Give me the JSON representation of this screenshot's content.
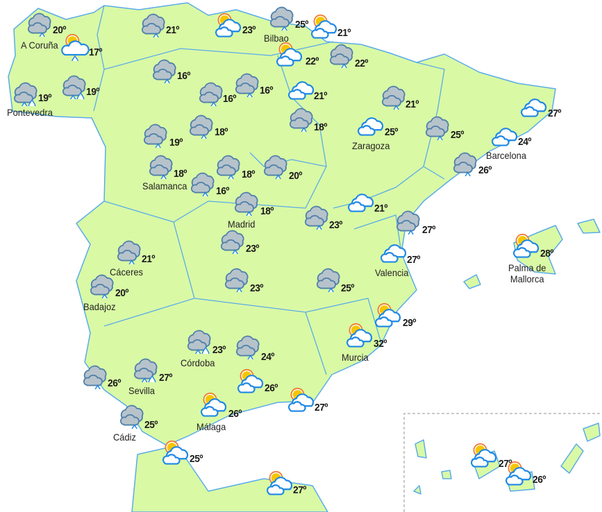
{
  "colors": {
    "land": "#d9f9a5",
    "border": "#5aabea",
    "rain_cloud": "#b7c3cb",
    "cloud_outline": "#1e88e5",
    "sun": "#f7c600",
    "sun_rays": "#f26b1d"
  },
  "stations": [
    {
      "icon": "rain",
      "temp": "20º",
      "city": "A Coruña"
    },
    {
      "icon": "sun-cloud-rain",
      "temp": "17º",
      "city": ""
    },
    {
      "icon": "showers",
      "temp": "19º",
      "city": "Pontevedra"
    },
    {
      "icon": "showers",
      "temp": "19º",
      "city": ""
    },
    {
      "icon": "rain",
      "temp": "21º",
      "city": ""
    },
    {
      "icon": "rain",
      "temp": "16º",
      "city": ""
    },
    {
      "icon": "partly-cloudy",
      "temp": "23º",
      "city": ""
    },
    {
      "icon": "rain",
      "temp": "25º",
      "city": "Bilbao"
    },
    {
      "icon": "partly-cloudy",
      "temp": "21º",
      "city": ""
    },
    {
      "icon": "partly-cloudy",
      "temp": "22º",
      "city": ""
    },
    {
      "icon": "rain",
      "temp": "22º",
      "city": ""
    },
    {
      "icon": "rain",
      "temp": "16º",
      "city": ""
    },
    {
      "icon": "rain",
      "temp": "16º",
      "city": ""
    },
    {
      "icon": "cloudy",
      "temp": "21º",
      "city": ""
    },
    {
      "icon": "rain",
      "temp": "18º",
      "city": ""
    },
    {
      "icon": "rain",
      "temp": "21º",
      "city": ""
    },
    {
      "icon": "cloudy",
      "temp": "25º",
      "city": "Zaragoza"
    },
    {
      "icon": "rain",
      "temp": "19º",
      "city": ""
    },
    {
      "icon": "rain",
      "temp": "18º",
      "city": ""
    },
    {
      "icon": "rain",
      "temp": "25º",
      "city": ""
    },
    {
      "icon": "cloudy",
      "temp": "27º",
      "city": ""
    },
    {
      "icon": "cloudy",
      "temp": "24º",
      "city": "Barcelona"
    },
    {
      "icon": "rain",
      "temp": "26º",
      "city": ""
    },
    {
      "icon": "rain",
      "temp": "18º",
      "city": "Salamanca"
    },
    {
      "icon": "rain",
      "temp": "16º",
      "city": ""
    },
    {
      "icon": "rain",
      "temp": "18º",
      "city": ""
    },
    {
      "icon": "rain",
      "temp": "20º",
      "city": ""
    },
    {
      "icon": "rain",
      "temp": "18º",
      "city": "Madrid"
    },
    {
      "icon": "cloudy",
      "temp": "21º",
      "city": ""
    },
    {
      "icon": "rain",
      "temp": "23º",
      "city": ""
    },
    {
      "icon": "rain",
      "temp": "27º",
      "city": ""
    },
    {
      "icon": "partly-cloudy",
      "temp": "28º",
      "city": "Palma de\nMallorca"
    },
    {
      "icon": "rain",
      "temp": "21º",
      "city": "Cáceres"
    },
    {
      "icon": "rain",
      "temp": "23º",
      "city": ""
    },
    {
      "icon": "cloudy",
      "temp": "27º",
      "city": "Valencia"
    },
    {
      "icon": "rain",
      "temp": "20º",
      "city": "Badajoz"
    },
    {
      "icon": "rain",
      "temp": "23º",
      "city": ""
    },
    {
      "icon": "rain",
      "temp": "25º",
      "city": ""
    },
    {
      "icon": "partly-cloudy",
      "temp": "29º",
      "city": ""
    },
    {
      "icon": "partly-cloudy",
      "temp": "32º",
      "city": "Murcia"
    },
    {
      "icon": "showers",
      "temp": "23º",
      "city": "Córdoba"
    },
    {
      "icon": "rain",
      "temp": "24º",
      "city": ""
    },
    {
      "icon": "rain",
      "temp": "26º",
      "city": ""
    },
    {
      "icon": "showers",
      "temp": "27º",
      "city": "Sevilla"
    },
    {
      "icon": "partly-cloudy",
      "temp": "26º",
      "city": ""
    },
    {
      "icon": "partly-cloudy",
      "temp": "26º",
      "city": "Málaga"
    },
    {
      "icon": "partly-cloudy",
      "temp": "27º",
      "city": ""
    },
    {
      "icon": "rain",
      "temp": "25º",
      "city": "Cádiz"
    },
    {
      "icon": "partly-cloudy",
      "temp": "25º",
      "city": ""
    },
    {
      "icon": "partly-cloudy",
      "temp": "27º",
      "city": ""
    },
    {
      "icon": "partly-cloudy",
      "temp": "27º",
      "city": ""
    },
    {
      "icon": "partly-cloudy",
      "temp": "26º",
      "city": ""
    }
  ]
}
